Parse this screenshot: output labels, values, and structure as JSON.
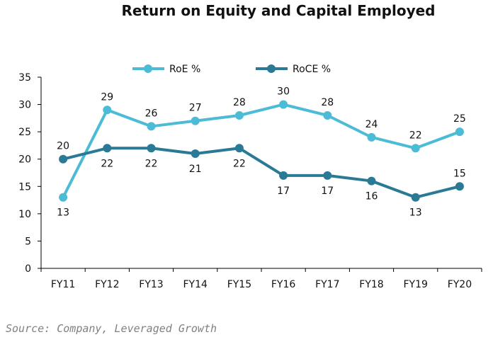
{
  "chart_data": {
    "type": "line",
    "title": "Return on Equity and Capital Employed",
    "categories": [
      "FY11",
      "FY12",
      "FY13",
      "FY14",
      "FY15",
      "FY16",
      "FY17",
      "FY18",
      "FY19",
      "FY20"
    ],
    "series": [
      {
        "name": "RoE %",
        "color": "#4cbcd6",
        "values": [
          13,
          29,
          26,
          27,
          28,
          30,
          28,
          24,
          22,
          25
        ]
      },
      {
        "name": "RoCE %",
        "color": "#2a7a96",
        "values": [
          20,
          22,
          22,
          21,
          22,
          17,
          17,
          16,
          13,
          15
        ]
      }
    ],
    "ylim": [
      0,
      35
    ],
    "yticks": [
      0,
      5,
      10,
      15,
      20,
      25,
      30,
      35
    ],
    "grid": false,
    "legend": "top"
  },
  "source": "Source: Company, Leveraged Growth"
}
